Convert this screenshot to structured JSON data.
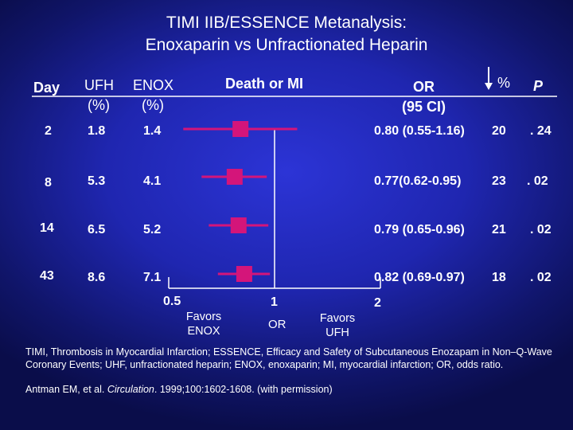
{
  "title_line1": "TIMI IIB/ESSENCE Metanalysis:",
  "title_line2": "Enoxaparin vs Unfractionated Heparin",
  "headers": {
    "day": "Day",
    "ufh": "UFH",
    "ufh_unit": "(%)",
    "enox": "ENOX",
    "enox_unit": "(%)",
    "outcome": "Death or MI",
    "or": "OR",
    "or_ci": "(95 CI)",
    "reduction": "%",
    "p": "P"
  },
  "rows": [
    {
      "day": "2",
      "ufh": "1.8",
      "enox": "1.4",
      "or_text": "0.80 (0.55-1.16)",
      "reduction": "20",
      "p": ". 24"
    },
    {
      "day": "8",
      "ufh": "5.3",
      "enox": "4.1",
      "or_text": "0.77(0.62-0.95)",
      "reduction": "23",
      "p": ". 02"
    },
    {
      "day": "14",
      "ufh": "6.5",
      "enox": "5.2",
      "or_text": "0.79 (0.65-0.96)",
      "reduction": "21",
      "p": ". 02"
    },
    {
      "day": "43",
      "ufh": "8.6",
      "enox": "7.1",
      "or_text": "0.82 (0.69-0.97)",
      "reduction": "18",
      "p": ". 02"
    }
  ],
  "axis": {
    "tick_low": "0.5",
    "tick_mid": "1",
    "tick_high": "2",
    "or_label": "OR",
    "favors_left_1": "Favors",
    "favors_left_2": "ENOX",
    "favors_right_1": "Favors",
    "favors_right_2": "UFH"
  },
  "footnote": {
    "line1": "TIMI, Thrombosis in Myocardial Infarction; ESSENCE, Efficacy and Safety of Subcutaneous Enozapam in Non–Q-Wave Coronary Events; UHF, unfractionated heparin; ENOX, enoxaparin; MI, myocardial infarction; OR, odds ratio.",
    "citation_authors": "Antman EM, et al. ",
    "citation_journal": "Circulation",
    "citation_rest": ". 1999;100:1602-1608. (with permission)"
  },
  "chart_data": {
    "type": "forest",
    "x_scale": "log",
    "xlim": [
      0.5,
      2
    ],
    "reference_line": 1,
    "categories": [
      "2",
      "8",
      "14",
      "43"
    ],
    "or": [
      0.8,
      0.77,
      0.79,
      0.82
    ],
    "ci_low": [
      0.55,
      0.62,
      0.65,
      0.69
    ],
    "ci_high": [
      1.16,
      0.95,
      0.96,
      0.97
    ]
  },
  "colors": {
    "marker": "#d4157a",
    "text": "#ffffff",
    "background": "#1f26b0"
  }
}
